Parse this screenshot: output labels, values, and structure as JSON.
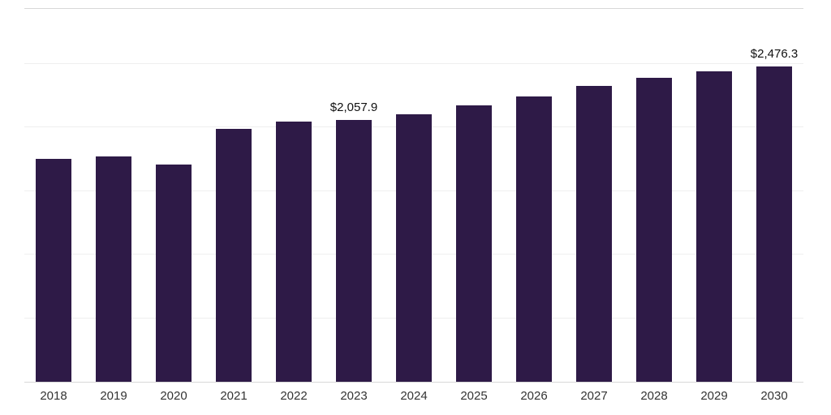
{
  "chart_data": {
    "type": "bar",
    "categories": [
      "2018",
      "2019",
      "2020",
      "2021",
      "2022",
      "2023",
      "2024",
      "2025",
      "2026",
      "2027",
      "2028",
      "2029",
      "2030"
    ],
    "values": [
      1750,
      1768,
      1705,
      1990,
      2045,
      2057.9,
      2105,
      2175,
      2245,
      2325,
      2390,
      2440,
      2476.3
    ],
    "data_labels": {
      "2023": "$2,057.9",
      "2030": "$2,476.3"
    },
    "title": "",
    "xlabel": "",
    "ylabel": "",
    "ylim": [
      0,
      2930
    ],
    "gridlines": [
      500,
      1000,
      1500,
      2000,
      2500
    ],
    "grid": "on",
    "legend": "none",
    "bar_color": "#2e1a47",
    "label_color": "#111111",
    "tick_label_color": "#333333"
  }
}
